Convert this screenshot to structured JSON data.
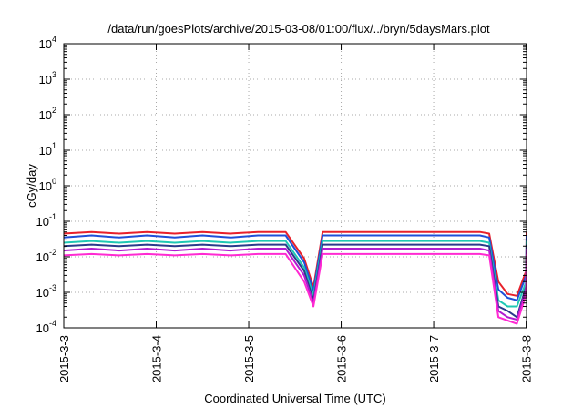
{
  "chart_data": {
    "type": "line",
    "title": "/data/run/goesPlots/archive/2015-03-08/01:00/flux/../bryn/5daysMars.plot",
    "xlabel": "Coordinated Universal Time (UTC)",
    "ylabel": "cGy/day",
    "xlim": [
      "2015-03-03 00:00",
      "2015-03-08 00:06"
    ],
    "ylim": [
      0.0001,
      10000
    ],
    "yscale": "log",
    "grid": true,
    "legend": "none",
    "x_tick_labels": [
      "2015-3-3",
      "2015-3-4",
      "2015-3-5",
      "2015-3-6",
      "2015-3-7",
      "2015-3-8"
    ],
    "y_tick_labels": [
      {
        "base": "10",
        "exp": "-4"
      },
      {
        "base": "10",
        "exp": "-3"
      },
      {
        "base": "10",
        "exp": "-2"
      },
      {
        "base": "10",
        "exp": "-1"
      },
      {
        "base": "10",
        "exp": "0"
      },
      {
        "base": "10",
        "exp": "1"
      },
      {
        "base": "10",
        "exp": "2"
      },
      {
        "base": "10",
        "exp": "3"
      },
      {
        "base": "10",
        "exp": "4"
      }
    ],
    "series": [
      {
        "color": "#e8202a",
        "x": [
          "2015-03-03 00:00",
          "2015-03-03 07:12",
          "2015-03-03 14:24",
          "2015-03-03 21:36",
          "2015-03-04 04:48",
          "2015-03-04 12:00",
          "2015-03-04 19:12",
          "2015-03-05 02:24",
          "2015-03-05 09:36",
          "2015-03-05 14:24",
          "2015-03-05 16:48",
          "2015-03-05 19:12",
          "2015-03-06 00:00",
          "2015-03-06 07:12",
          "2015-03-06 14:24",
          "2015-03-06 21:36",
          "2015-03-07 04:48",
          "2015-03-07 12:00",
          "2015-03-07 14:24",
          "2015-03-07 16:48",
          "2015-03-07 19:12",
          "2015-03-07 21:36",
          "2015-03-08 00:00",
          "2015-03-08 00:06"
        ],
        "values": [
          0.045,
          0.05,
          0.045,
          0.05,
          0.045,
          0.05,
          0.045,
          0.05,
          0.05,
          0.009,
          0.0014,
          0.05,
          0.05,
          0.05,
          0.05,
          0.05,
          0.05,
          0.05,
          0.045,
          0.002,
          0.0009,
          0.0008,
          0.004,
          0.05
        ]
      },
      {
        "color": "#1f4fd8",
        "x": [
          "2015-03-03 00:00",
          "2015-03-03 07:12",
          "2015-03-03 14:24",
          "2015-03-03 21:36",
          "2015-03-04 04:48",
          "2015-03-04 12:00",
          "2015-03-04 19:12",
          "2015-03-05 02:24",
          "2015-03-05 09:36",
          "2015-03-05 14:24",
          "2015-03-05 16:48",
          "2015-03-05 19:12",
          "2015-03-06 00:00",
          "2015-03-06 07:12",
          "2015-03-06 14:24",
          "2015-03-06 21:36",
          "2015-03-07 04:48",
          "2015-03-07 12:00",
          "2015-03-07 14:24",
          "2015-03-07 16:48",
          "2015-03-07 19:12",
          "2015-03-07 21:36",
          "2015-03-08 00:00",
          "2015-03-08 00:06"
        ],
        "values": [
          0.035,
          0.04,
          0.035,
          0.04,
          0.035,
          0.04,
          0.035,
          0.04,
          0.04,
          0.007,
          0.0011,
          0.04,
          0.04,
          0.04,
          0.04,
          0.04,
          0.04,
          0.04,
          0.035,
          0.0012,
          0.0007,
          0.0006,
          0.003,
          0.04
        ]
      },
      {
        "color": "#1ec8b4",
        "x": [
          "2015-03-03 00:00",
          "2015-03-03 07:12",
          "2015-03-03 14:24",
          "2015-03-03 21:36",
          "2015-03-04 04:48",
          "2015-03-04 12:00",
          "2015-03-04 19:12",
          "2015-03-05 02:24",
          "2015-03-05 09:36",
          "2015-03-05 14:24",
          "2015-03-05 16:48",
          "2015-03-05 19:12",
          "2015-03-06 00:00",
          "2015-03-06 07:12",
          "2015-03-06 14:24",
          "2015-03-06 21:36",
          "2015-03-07 04:48",
          "2015-03-07 12:00",
          "2015-03-07 14:24",
          "2015-03-07 16:48",
          "2015-03-07 19:12",
          "2015-03-07 21:36",
          "2015-03-08 00:00",
          "2015-03-08 00:06"
        ],
        "values": [
          0.025,
          0.028,
          0.025,
          0.028,
          0.025,
          0.028,
          0.025,
          0.028,
          0.028,
          0.005,
          0.0008,
          0.028,
          0.028,
          0.028,
          0.028,
          0.028,
          0.028,
          0.028,
          0.025,
          0.0006,
          0.0004,
          0.0004,
          0.002,
          0.028
        ]
      },
      {
        "color": "#2a3a8a",
        "x": [
          "2015-03-03 00:00",
          "2015-03-03 07:12",
          "2015-03-03 14:24",
          "2015-03-03 21:36",
          "2015-03-04 04:48",
          "2015-03-04 12:00",
          "2015-03-04 19:12",
          "2015-03-05 02:24",
          "2015-03-05 09:36",
          "2015-03-05 14:24",
          "2015-03-05 16:48",
          "2015-03-05 19:12",
          "2015-03-06 00:00",
          "2015-03-06 07:12",
          "2015-03-06 14:24",
          "2015-03-06 21:36",
          "2015-03-07 04:48",
          "2015-03-07 12:00",
          "2015-03-07 14:24",
          "2015-03-07 16:48",
          "2015-03-07 19:12",
          "2015-03-07 21:36",
          "2015-03-08 00:00",
          "2015-03-08 00:06"
        ],
        "values": [
          0.02,
          0.022,
          0.02,
          0.022,
          0.02,
          0.022,
          0.02,
          0.022,
          0.022,
          0.004,
          0.0006,
          0.022,
          0.022,
          0.022,
          0.022,
          0.022,
          0.022,
          0.022,
          0.02,
          0.0004,
          0.0003,
          0.0002,
          0.0015,
          0.022
        ]
      },
      {
        "color": "#b01cd0",
        "x": [
          "2015-03-03 00:00",
          "2015-03-03 07:12",
          "2015-03-03 14:24",
          "2015-03-03 21:36",
          "2015-03-04 04:48",
          "2015-03-04 12:00",
          "2015-03-04 19:12",
          "2015-03-05 02:24",
          "2015-03-05 09:36",
          "2015-03-05 14:24",
          "2015-03-05 16:48",
          "2015-03-05 19:12",
          "2015-03-06 00:00",
          "2015-03-06 07:12",
          "2015-03-06 14:24",
          "2015-03-06 21:36",
          "2015-03-07 04:48",
          "2015-03-07 12:00",
          "2015-03-07 14:24",
          "2015-03-07 16:48",
          "2015-03-07 19:12",
          "2015-03-07 21:36",
          "2015-03-08 00:00",
          "2015-03-08 00:06"
        ],
        "values": [
          0.015,
          0.017,
          0.015,
          0.017,
          0.015,
          0.017,
          0.015,
          0.017,
          0.017,
          0.003,
          0.0005,
          0.017,
          0.017,
          0.017,
          0.017,
          0.017,
          0.017,
          0.017,
          0.015,
          0.0003,
          0.0002,
          0.00017,
          0.0012,
          0.017
        ]
      },
      {
        "color": "#ff2ad2",
        "x": [
          "2015-03-03 00:00",
          "2015-03-03 07:12",
          "2015-03-03 14:24",
          "2015-03-03 21:36",
          "2015-03-04 04:48",
          "2015-03-04 12:00",
          "2015-03-04 19:12",
          "2015-03-05 02:24",
          "2015-03-05 09:36",
          "2015-03-05 14:24",
          "2015-03-05 16:48",
          "2015-03-05 19:12",
          "2015-03-06 00:00",
          "2015-03-06 07:12",
          "2015-03-06 14:24",
          "2015-03-06 21:36",
          "2015-03-07 04:48",
          "2015-03-07 12:00",
          "2015-03-07 14:24",
          "2015-03-07 16:48",
          "2015-03-07 19:12",
          "2015-03-07 21:36",
          "2015-03-08 00:00",
          "2015-03-08 00:06"
        ],
        "values": [
          0.011,
          0.012,
          0.011,
          0.012,
          0.011,
          0.012,
          0.011,
          0.012,
          0.012,
          0.002,
          0.0004,
          0.012,
          0.012,
          0.012,
          0.012,
          0.012,
          0.012,
          0.012,
          0.011,
          0.0002,
          0.00016,
          0.00013,
          0.0009,
          0.012
        ]
      }
    ]
  }
}
